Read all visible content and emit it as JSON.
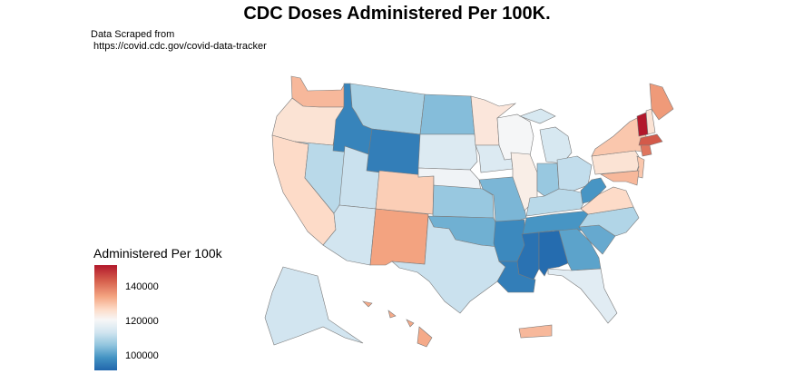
{
  "title": "CDC Doses Administered Per 100K.",
  "subtitle": "Data Scraped from\n https://covid.cdc.gov/covid-data-tracker",
  "legend": {
    "title": "Administered Per 100k",
    "ticks": [
      {
        "label": "140000",
        "value": 140000
      },
      {
        "label": "120000",
        "value": 120000
      },
      {
        "label": "100000",
        "value": 100000
      }
    ],
    "range": [
      92000,
      153000
    ],
    "colors": [
      "#b2182b",
      "#d6604d",
      "#f4a582",
      "#fddbc7",
      "#f7f7f7",
      "#d1e5f0",
      "#92c5de",
      "#4393c3",
      "#2166ac"
    ]
  },
  "states": [
    {
      "abbr": "WA",
      "value": 135000
    },
    {
      "abbr": "OR",
      "value": 128000
    },
    {
      "abbr": "CA",
      "value": 130000
    },
    {
      "abbr": "NV",
      "value": 112000
    },
    {
      "abbr": "ID",
      "value": 97000
    },
    {
      "abbr": "MT",
      "value": 110000
    },
    {
      "abbr": "WY",
      "value": 96000
    },
    {
      "abbr": "UT",
      "value": 114000
    },
    {
      "abbr": "AZ",
      "value": 115000
    },
    {
      "abbr": "CO",
      "value": 132000
    },
    {
      "abbr": "NM",
      "value": 138000
    },
    {
      "abbr": "ND",
      "value": 106000
    },
    {
      "abbr": "SD",
      "value": 117000
    },
    {
      "abbr": "NE",
      "value": 121000
    },
    {
      "abbr": "KS",
      "value": 108000
    },
    {
      "abbr": "OK",
      "value": 104000
    },
    {
      "abbr": "TX",
      "value": 114000
    },
    {
      "abbr": "MN",
      "value": 127000
    },
    {
      "abbr": "IA",
      "value": 117000
    },
    {
      "abbr": "MO",
      "value": 105000
    },
    {
      "abbr": "AR",
      "value": 98000
    },
    {
      "abbr": "LA",
      "value": 96000
    },
    {
      "abbr": "WI",
      "value": 122000
    },
    {
      "abbr": "IL",
      "value": 125000
    },
    {
      "abbr": "MI",
      "value": 116000
    },
    {
      "abbr": "IN",
      "value": 108000
    },
    {
      "abbr": "OH",
      "value": 113000
    },
    {
      "abbr": "KY",
      "value": 112000
    },
    {
      "abbr": "TN",
      "value": 100000
    },
    {
      "abbr": "MS",
      "value": 94000
    },
    {
      "abbr": "AL",
      "value": 93000
    },
    {
      "abbr": "GA",
      "value": 102000
    },
    {
      "abbr": "FL",
      "value": 118000
    },
    {
      "abbr": "SC",
      "value": 103000
    },
    {
      "abbr": "NC",
      "value": 111000
    },
    {
      "abbr": "VA",
      "value": 130000
    },
    {
      "abbr": "WV",
      "value": 100000
    },
    {
      "abbr": "PA",
      "value": 128000
    },
    {
      "abbr": "NY",
      "value": 133000
    },
    {
      "abbr": "NJ",
      "value": 133000
    },
    {
      "abbr": "MD",
      "value": 135000
    },
    {
      "abbr": "VT",
      "value": 153000
    },
    {
      "abbr": "NH",
      "value": 128000
    },
    {
      "abbr": "ME",
      "value": 139000
    },
    {
      "abbr": "MA",
      "value": 146000
    },
    {
      "abbr": "CT",
      "value": 143000
    },
    {
      "abbr": "AK",
      "value": 115000
    },
    {
      "abbr": "HI",
      "value": 137000
    },
    {
      "abbr": "PR",
      "value": 135000
    }
  ]
}
